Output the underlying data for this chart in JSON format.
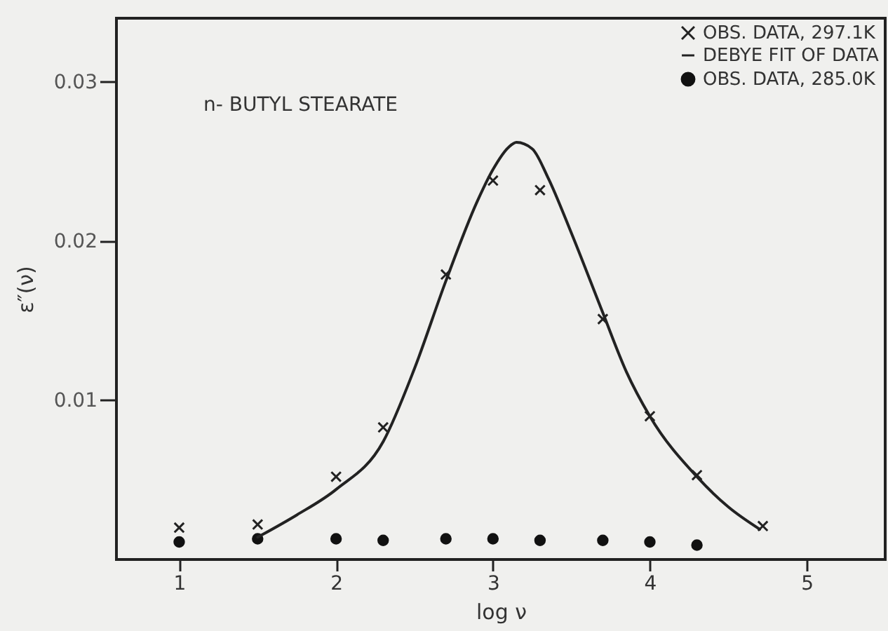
{
  "chart_data": {
    "type": "scatter",
    "xlabel": "log ν",
    "ylabel": "ε″(ν)",
    "annotations": [
      "n- BUTYL STEARATE"
    ],
    "xlim": [
      0.6,
      5.5
    ],
    "xticks": [
      1,
      2,
      3,
      4,
      5
    ],
    "ylim": [
      0,
      0.034
    ],
    "yticks": [
      0.01,
      0.02,
      0.03
    ],
    "grid": false,
    "legend": "top right",
    "series": [
      {
        "name": "OBS. DATA, 297.1K",
        "type": "scatter",
        "marker": "cross",
        "color": "#222222",
        "x": [
          1,
          1.5,
          2,
          2.3,
          2.7,
          3,
          3.3,
          3.7,
          4,
          4.3,
          4.72
        ],
        "values": [
          0.002,
          0.0022,
          0.0052,
          0.0083,
          0.0179,
          0.0238,
          0.0232,
          0.0151,
          0.009,
          0.0053,
          0.0021
        ]
      },
      {
        "name": "DEBYE FIT OF DATA",
        "type": "line",
        "line_style": "solid",
        "color": "#222222",
        "x": [
          1.5,
          1.75,
          2,
          2.3,
          2.5,
          2.7,
          2.9,
          3,
          3.1,
          3.15,
          3.25,
          3.35,
          3.5,
          3.7,
          3.85,
          4,
          4.3,
          4.5,
          4.7
        ],
        "values": [
          0.0014,
          0.0028,
          0.0044,
          0.0074,
          0.012,
          0.0175,
          0.0225,
          0.0245,
          0.0259,
          0.0262,
          0.0258,
          0.024,
          0.0205,
          0.0155,
          0.0118,
          0.009,
          0.0052,
          0.0033,
          0.0019
        ]
      },
      {
        "name": "OBS. DATA, 285.0K",
        "type": "scatter",
        "marker": "circle",
        "color": "#111111",
        "x": [
          1,
          1.5,
          2,
          2.3,
          2.7,
          3,
          3.3,
          3.7,
          4,
          4.3
        ],
        "values": [
          0.0011,
          0.0013,
          0.0013,
          0.0012,
          0.0013,
          0.0013,
          0.0012,
          0.0012,
          0.0011,
          0.0009
        ]
      }
    ]
  }
}
